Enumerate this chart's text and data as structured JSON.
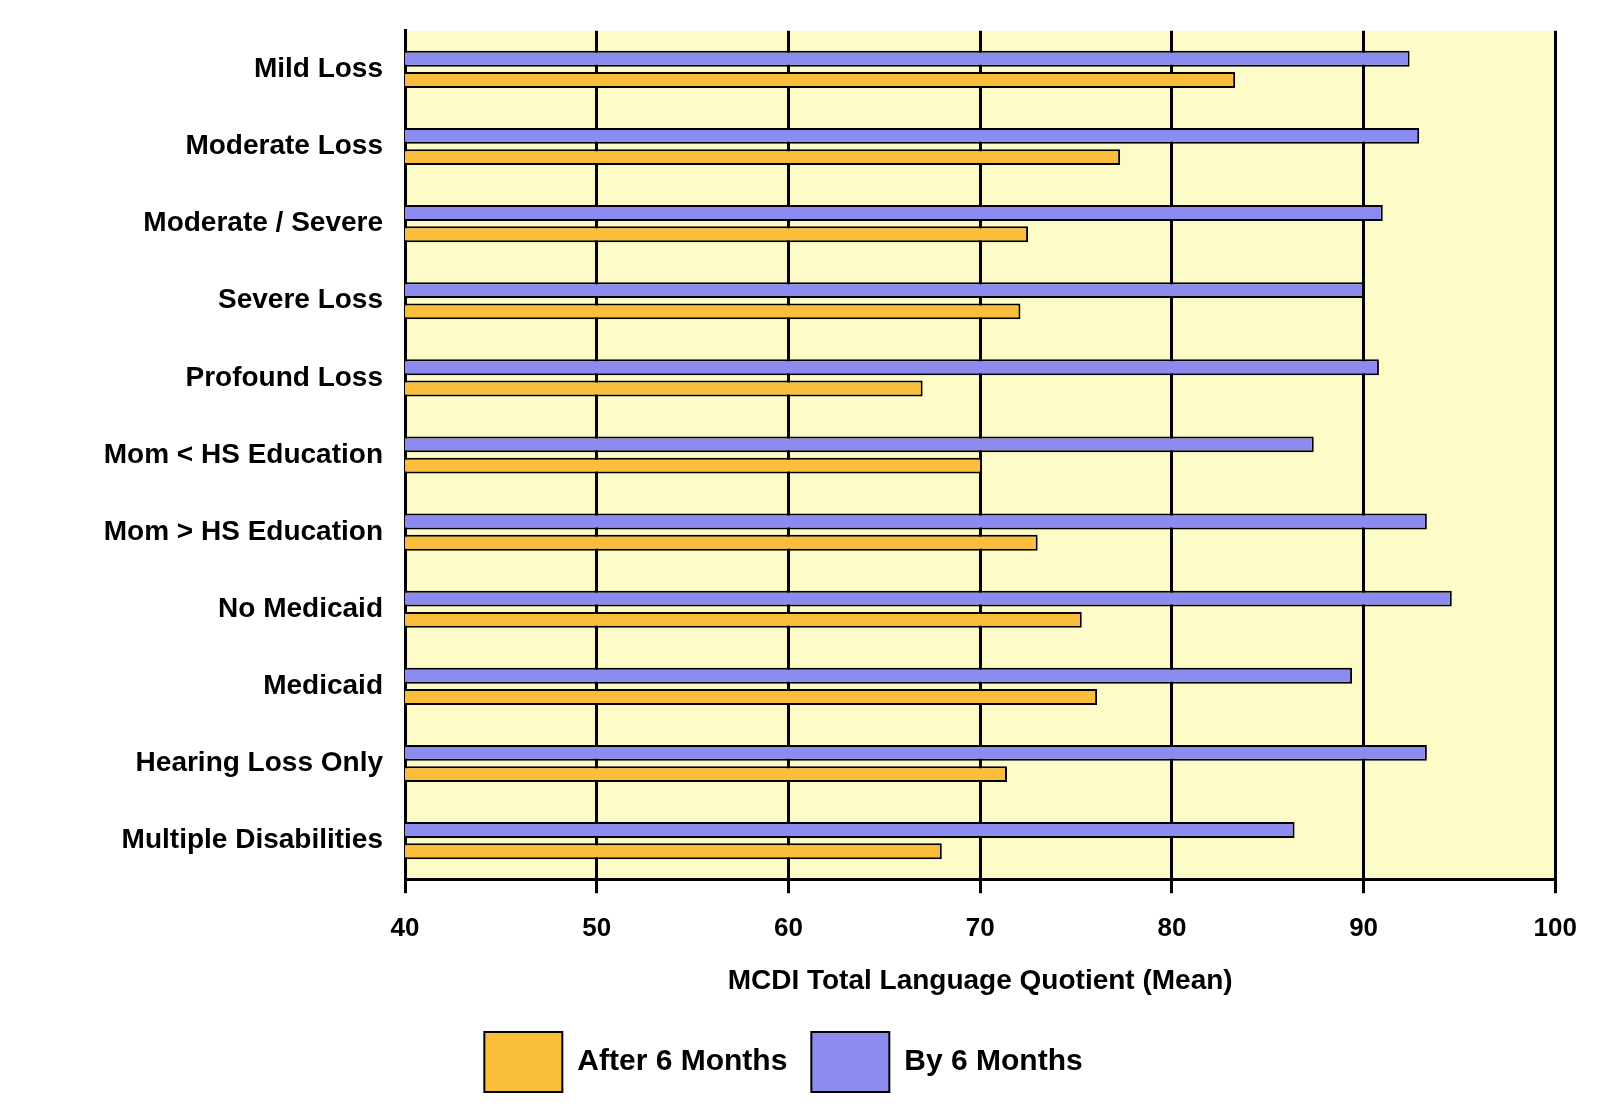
{
  "chart_data": {
    "type": "bar",
    "orientation": "horizontal",
    "xlabel": "MCDI Total Language Quotient (Mean)",
    "categories": [
      "Mild Loss",
      "Moderate Loss",
      "Moderate / Severe",
      "Severe Loss",
      "Profound Loss",
      "Mom < HS Education",
      "Mom > HS Education",
      "No Medicaid",
      "Medicaid",
      "Hearing Loss Only",
      "Multiple Disabilities"
    ],
    "series": [
      {
        "name": "After 6 Months",
        "color": "#fbbd3c",
        "values": [
          83.3,
          77.3,
          72.5,
          72.1,
          67.0,
          70.1,
          73.0,
          75.3,
          76.1,
          71.4,
          68.0
        ]
      },
      {
        "name": "By 6 Months",
        "color": "#8c8cf0",
        "values": [
          92.4,
          92.9,
          91.0,
          90.0,
          90.8,
          87.4,
          93.3,
          94.6,
          89.4,
          93.3,
          86.4
        ]
      }
    ],
    "xlim": [
      40,
      100
    ],
    "xticks": [
      40,
      50,
      60,
      70,
      80,
      90,
      100
    ],
    "grid": "x",
    "legend": "bottom"
  }
}
